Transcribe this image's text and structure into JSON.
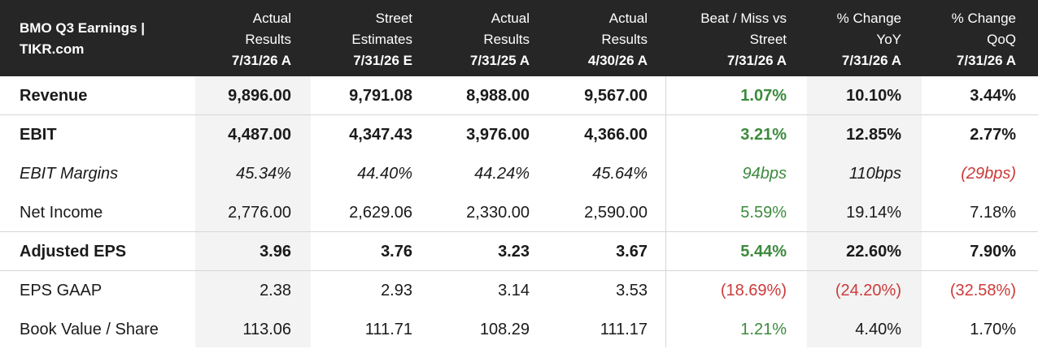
{
  "chart_data": {
    "type": "table",
    "title": "BMO Q3 Earnings | TIKR.com",
    "columns": [
      {
        "line1": "Actual",
        "line2": "Results",
        "date": "7/31/26 A"
      },
      {
        "line1": "Street",
        "line2": "Estimates",
        "date": "7/31/26 E"
      },
      {
        "line1": "Actual",
        "line2": "Results",
        "date": "7/31/25 A"
      },
      {
        "line1": "Actual",
        "line2": "Results",
        "date": "4/30/26 A"
      },
      {
        "line1": "Beat / Miss vs",
        "line2": "Street",
        "date": "7/31/26 A"
      },
      {
        "line1": "% Change",
        "line2": "YoY",
        "date": "7/31/26 A"
      },
      {
        "line1": "% Change",
        "line2": "QoQ",
        "date": "7/31/26 A"
      }
    ],
    "rows": [
      {
        "label": "Revenue",
        "style": "bold",
        "values": [
          "9,896.00",
          "9,791.08",
          "8,988.00",
          "9,567.00",
          "1.07%",
          "10.10%",
          "3.44%"
        ]
      },
      {
        "label": "EBIT",
        "style": "bold",
        "values": [
          "4,487.00",
          "4,347.43",
          "3,976.00",
          "4,366.00",
          "3.21%",
          "12.85%",
          "2.77%"
        ]
      },
      {
        "label": "EBIT Margins",
        "style": "italic",
        "values": [
          "45.34%",
          "44.40%",
          "44.24%",
          "45.64%",
          "94bps",
          "110bps",
          "(29bps)"
        ]
      },
      {
        "label": "Net Income",
        "style": "normal",
        "values": [
          "2,776.00",
          "2,629.06",
          "2,330.00",
          "2,590.00",
          "5.59%",
          "19.14%",
          "7.18%"
        ]
      },
      {
        "label": "Adjusted EPS",
        "style": "bold",
        "values": [
          "3.96",
          "3.76",
          "3.23",
          "3.67",
          "5.44%",
          "22.60%",
          "7.90%"
        ]
      },
      {
        "label": "EPS GAAP",
        "style": "normal",
        "values": [
          "2.38",
          "2.93",
          "3.14",
          "3.53",
          "(18.69%)",
          "(24.20%)",
          "(32.58%)"
        ]
      },
      {
        "label": "Book Value / Share",
        "style": "normal",
        "values": [
          "113.06",
          "111.71",
          "108.29",
          "111.17",
          "1.21%",
          "4.40%",
          "1.70%"
        ]
      }
    ],
    "colors": {
      "header_bg": "#262626",
      "positive": "#3d8a3d",
      "negative": "#cc3a3a",
      "shade": "#f3f3f3"
    }
  }
}
